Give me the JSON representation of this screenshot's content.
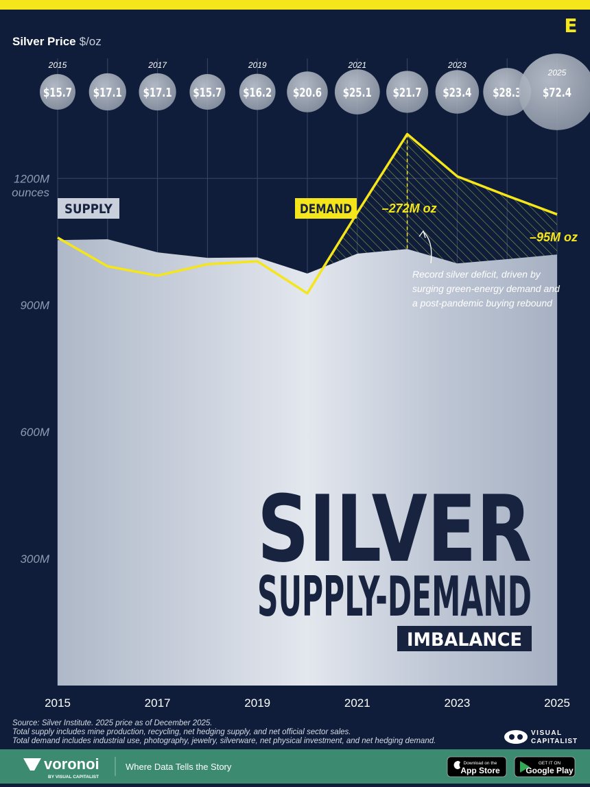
{
  "header": {
    "logo": "E"
  },
  "chart_data": {
    "type": "area",
    "title": "SILVER",
    "subtitle": "SUPPLY-DEMAND",
    "subtitle2": "IMBALANCE",
    "price_label": "Silver Price",
    "price_unit": "$/oz",
    "y_unit": "ounces",
    "x": [
      2015,
      2016,
      2017,
      2018,
      2019,
      2020,
      2021,
      2022,
      2023,
      2024,
      2025
    ],
    "xlim": [
      2015,
      2025
    ],
    "xticks": [
      2015,
      2017,
      2019,
      2021,
      2023,
      2025
    ],
    "ylim": [
      0,
      1400
    ],
    "yticks": [
      {
        "value": 300,
        "label": "300M"
      },
      {
        "value": 600,
        "label": "600M"
      },
      {
        "value": 900,
        "label": "900M"
      },
      {
        "value": 1200,
        "label": "1200M"
      }
    ],
    "grid": true,
    "series": [
      {
        "name": "SUPPLY",
        "type": "area",
        "color": "#c9d0dc",
        "values": [
          1054,
          1056,
          1025,
          1012,
          1013,
          975,
          1022,
          1033,
          999,
          1009,
          1020
        ]
      },
      {
        "name": "DEMAND",
        "type": "line",
        "color": "#f5e51b",
        "values": [
          1060,
          992,
          970,
          997,
          1004,
          928,
          1119,
          1305,
          1205,
          1159,
          1115
        ]
      }
    ],
    "prices": {
      "values": [
        15.7,
        17.1,
        17.1,
        15.7,
        16.2,
        20.6,
        25.1,
        21.7,
        23.4,
        28.3,
        72.4
      ],
      "value_labels": [
        "$15.7",
        "$17.1",
        "$17.1",
        "$15.7",
        "$16.2",
        "$20.6",
        "$25.1",
        "$21.7",
        "$23.4",
        "$28.3",
        "$72.4"
      ]
    },
    "annotations": [
      "–272M oz",
      "–95M oz"
    ],
    "note": [
      "Record silver deficit, driven by",
      "surging green-energy demand and",
      "a post-pandemic buying rebound"
    ]
  },
  "notes": [
    "Source: Silver Institute. 2025 price as of December 2025.",
    "Total supply includes mine production, recycling, net hedging supply, and net official sector sales.",
    "Total demand includes industrial use, photography, jewelry, silverware, net physical investment, and net hedging demand."
  ],
  "brand": {
    "line1": "VISUAL",
    "line2": "CAPITALIST"
  },
  "footer": {
    "name": "voronoi",
    "by": "BY VISUAL CAPITALIST",
    "tagline": "Where Data Tells the Story",
    "appstore_small": "Download on the",
    "appstore": "App Store",
    "googleplay_small": "GET IT ON",
    "googleplay": "Google Play"
  }
}
